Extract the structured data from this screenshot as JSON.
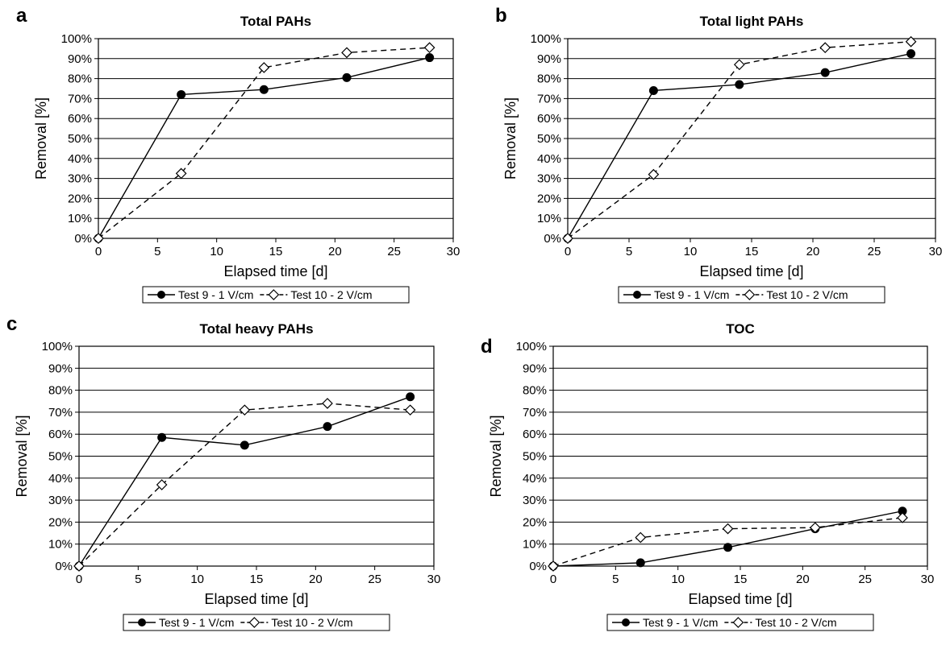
{
  "figure": {
    "series_styles": [
      {
        "color": "#000000",
        "marker": "filled-circle",
        "line": "solid"
      },
      {
        "color": "#000000",
        "marker": "open-diamond",
        "line": "dashed"
      }
    ]
  },
  "chart_data": [
    {
      "panel_letter": "a",
      "type": "line",
      "title": "Total PAHs",
      "xlabel": "Elapsed time [d]",
      "ylabel": "Removal [%]",
      "xlim": [
        0,
        30
      ],
      "ylim": [
        0,
        100
      ],
      "x_ticks": [
        "0",
        "5",
        "10",
        "15",
        "20",
        "25",
        "30"
      ],
      "y_ticks": [
        "0%",
        "10%",
        "20%",
        "30%",
        "40%",
        "50%",
        "60%",
        "70%",
        "80%",
        "90%",
        "100%"
      ],
      "grid": true,
      "legend_position": "bottom",
      "series": [
        {
          "name": "Test 9 - 1 V/cm",
          "x": [
            0,
            7,
            14,
            21,
            28
          ],
          "values": [
            0,
            72,
            74.5,
            80.5,
            90.5
          ]
        },
        {
          "name": "Test 10 - 2 V/cm",
          "x": [
            0,
            7,
            14,
            21,
            28
          ],
          "values": [
            0,
            32.5,
            85.5,
            93,
            95.5
          ]
        }
      ]
    },
    {
      "panel_letter": "b",
      "type": "line",
      "title": "Total light PAHs",
      "xlabel": "Elapsed time [d]",
      "ylabel": "Removal [%]",
      "xlim": [
        0,
        30
      ],
      "ylim": [
        0,
        100
      ],
      "x_ticks": [
        "0",
        "5",
        "10",
        "15",
        "20",
        "25",
        "30"
      ],
      "y_ticks": [
        "0%",
        "10%",
        "20%",
        "30%",
        "40%",
        "50%",
        "60%",
        "70%",
        "80%",
        "90%",
        "100%"
      ],
      "grid": true,
      "legend_position": "bottom",
      "series": [
        {
          "name": "Test 9 - 1 V/cm",
          "x": [
            0,
            7,
            14,
            21,
            28
          ],
          "values": [
            0,
            74,
            77,
            83,
            92.5
          ]
        },
        {
          "name": "Test 10 - 2 V/cm",
          "x": [
            0,
            7,
            14,
            21,
            28
          ],
          "values": [
            0,
            32,
            87,
            95.5,
            98.5
          ]
        }
      ]
    },
    {
      "panel_letter": "c",
      "type": "line",
      "title": "Total heavy PAHs",
      "xlabel": "Elapsed time [d]",
      "ylabel": "Removal [%]",
      "xlim": [
        0,
        30
      ],
      "ylim": [
        0,
        100
      ],
      "x_ticks": [
        "0",
        "5",
        "10",
        "15",
        "20",
        "25",
        "30"
      ],
      "y_ticks": [
        "0%",
        "10%",
        "20%",
        "30%",
        "40%",
        "50%",
        "60%",
        "70%",
        "80%",
        "90%",
        "100%"
      ],
      "grid": true,
      "legend_position": "bottom",
      "series": [
        {
          "name": "Test 9 - 1 V/cm",
          "x": [
            0,
            7,
            14,
            21,
            28
          ],
          "values": [
            0,
            58.5,
            55,
            63.5,
            77
          ]
        },
        {
          "name": "Test 10 - 2 V/cm",
          "x": [
            0,
            7,
            14,
            21,
            28
          ],
          "values": [
            0,
            37,
            71,
            74,
            71
          ]
        }
      ]
    },
    {
      "panel_letter": "d",
      "type": "line",
      "title": "TOC",
      "xlabel": "Elapsed time [d]",
      "ylabel": "Removal [%]",
      "xlim": [
        0,
        30
      ],
      "ylim": [
        0,
        100
      ],
      "x_ticks": [
        "0",
        "5",
        "10",
        "15",
        "20",
        "25",
        "30"
      ],
      "y_ticks": [
        "0%",
        "10%",
        "20%",
        "30%",
        "40%",
        "50%",
        "60%",
        "70%",
        "80%",
        "90%",
        "100%"
      ],
      "grid": true,
      "legend_position": "bottom",
      "series": [
        {
          "name": "Test 9 - 1 V/cm",
          "x": [
            0,
            7,
            14,
            21,
            28
          ],
          "values": [
            0,
            1.5,
            8.5,
            17,
            25
          ]
        },
        {
          "name": "Test 10 - 2 V/cm",
          "x": [
            0,
            7,
            14,
            21,
            28
          ],
          "values": [
            0,
            13,
            17,
            17.5,
            22
          ]
        }
      ]
    }
  ]
}
